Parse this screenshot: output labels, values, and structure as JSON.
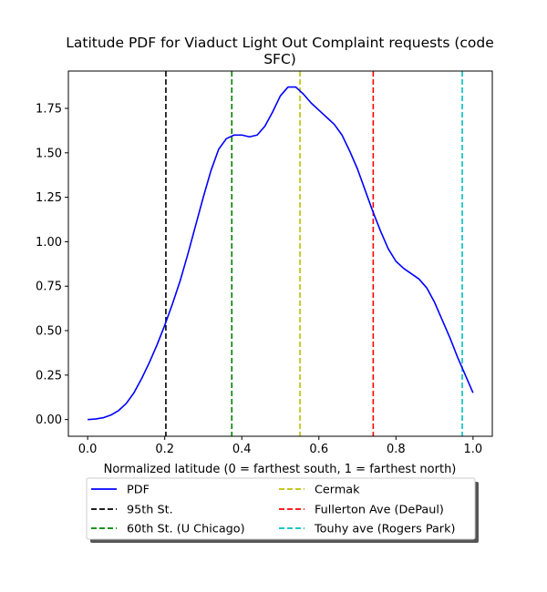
{
  "chart_data": {
    "type": "line",
    "title_lines": [
      "Latitude PDF for Viaduct Light Out Complaint  requests (code",
      "SFC)"
    ],
    "xlabel": "Normalized latitude (0 = farthest south, 1 = farthest north)",
    "ylabel": "",
    "xlim": [
      -0.05,
      1.05
    ],
    "ylim": [
      -0.094,
      1.96
    ],
    "xticks": [
      0.0,
      0.2,
      0.4,
      0.6,
      0.8,
      1.0
    ],
    "xtick_labels": [
      "0.0",
      "0.2",
      "0.4",
      "0.6",
      "0.8",
      "1.0"
    ],
    "yticks": [
      0.0,
      0.25,
      0.5,
      0.75,
      1.0,
      1.25,
      1.5,
      1.75
    ],
    "ytick_labels": [
      "0.00",
      "0.25",
      "0.50",
      "0.75",
      "1.00",
      "1.25",
      "1.50",
      "1.75"
    ],
    "grid": false,
    "legend_placement": "below plot, two columns",
    "series": [
      {
        "name": "PDF",
        "color": "#0000ff",
        "x": [
          0.0,
          0.02,
          0.04,
          0.06,
          0.08,
          0.1,
          0.12,
          0.14,
          0.16,
          0.18,
          0.2,
          0.22,
          0.24,
          0.26,
          0.28,
          0.3,
          0.32,
          0.34,
          0.36,
          0.38,
          0.4,
          0.42,
          0.44,
          0.46,
          0.48,
          0.5,
          0.52,
          0.54,
          0.56,
          0.58,
          0.6,
          0.62,
          0.64,
          0.66,
          0.68,
          0.7,
          0.72,
          0.74,
          0.76,
          0.78,
          0.8,
          0.82,
          0.84,
          0.86,
          0.88,
          0.9,
          0.92,
          0.94,
          0.96,
          0.98,
          1.0
        ],
        "y": [
          0.0,
          0.003,
          0.01,
          0.025,
          0.05,
          0.09,
          0.15,
          0.23,
          0.32,
          0.42,
          0.53,
          0.65,
          0.78,
          0.93,
          1.09,
          1.25,
          1.4,
          1.52,
          1.58,
          1.6,
          1.6,
          1.59,
          1.6,
          1.65,
          1.73,
          1.82,
          1.87,
          1.87,
          1.83,
          1.78,
          1.74,
          1.7,
          1.66,
          1.6,
          1.51,
          1.41,
          1.29,
          1.17,
          1.06,
          0.96,
          0.89,
          0.85,
          0.82,
          0.79,
          0.74,
          0.66,
          0.56,
          0.46,
          0.35,
          0.25,
          0.15
        ]
      }
    ],
    "vlines": [
      {
        "name": "95th St.",
        "x": 0.203,
        "color": "#000000"
      },
      {
        "name": "60th St. (U Chicago)",
        "x": 0.374,
        "color": "#008000"
      },
      {
        "name": "Cermak",
        "x": 0.551,
        "color": "#bfbf00"
      },
      {
        "name": "Fullerton Ave (DePaul)",
        "x": 0.741,
        "color": "#ff0000"
      },
      {
        "name": "Touhy ave (Rogers Park)",
        "x": 0.972,
        "color": "#00bfbf"
      }
    ],
    "legend_columns": [
      [
        "PDF",
        "95th St.",
        "60th St. (U Chicago)"
      ],
      [
        "Cermak",
        "Fullerton Ave (DePaul)",
        "Touhy ave (Rogers Park)"
      ]
    ]
  }
}
